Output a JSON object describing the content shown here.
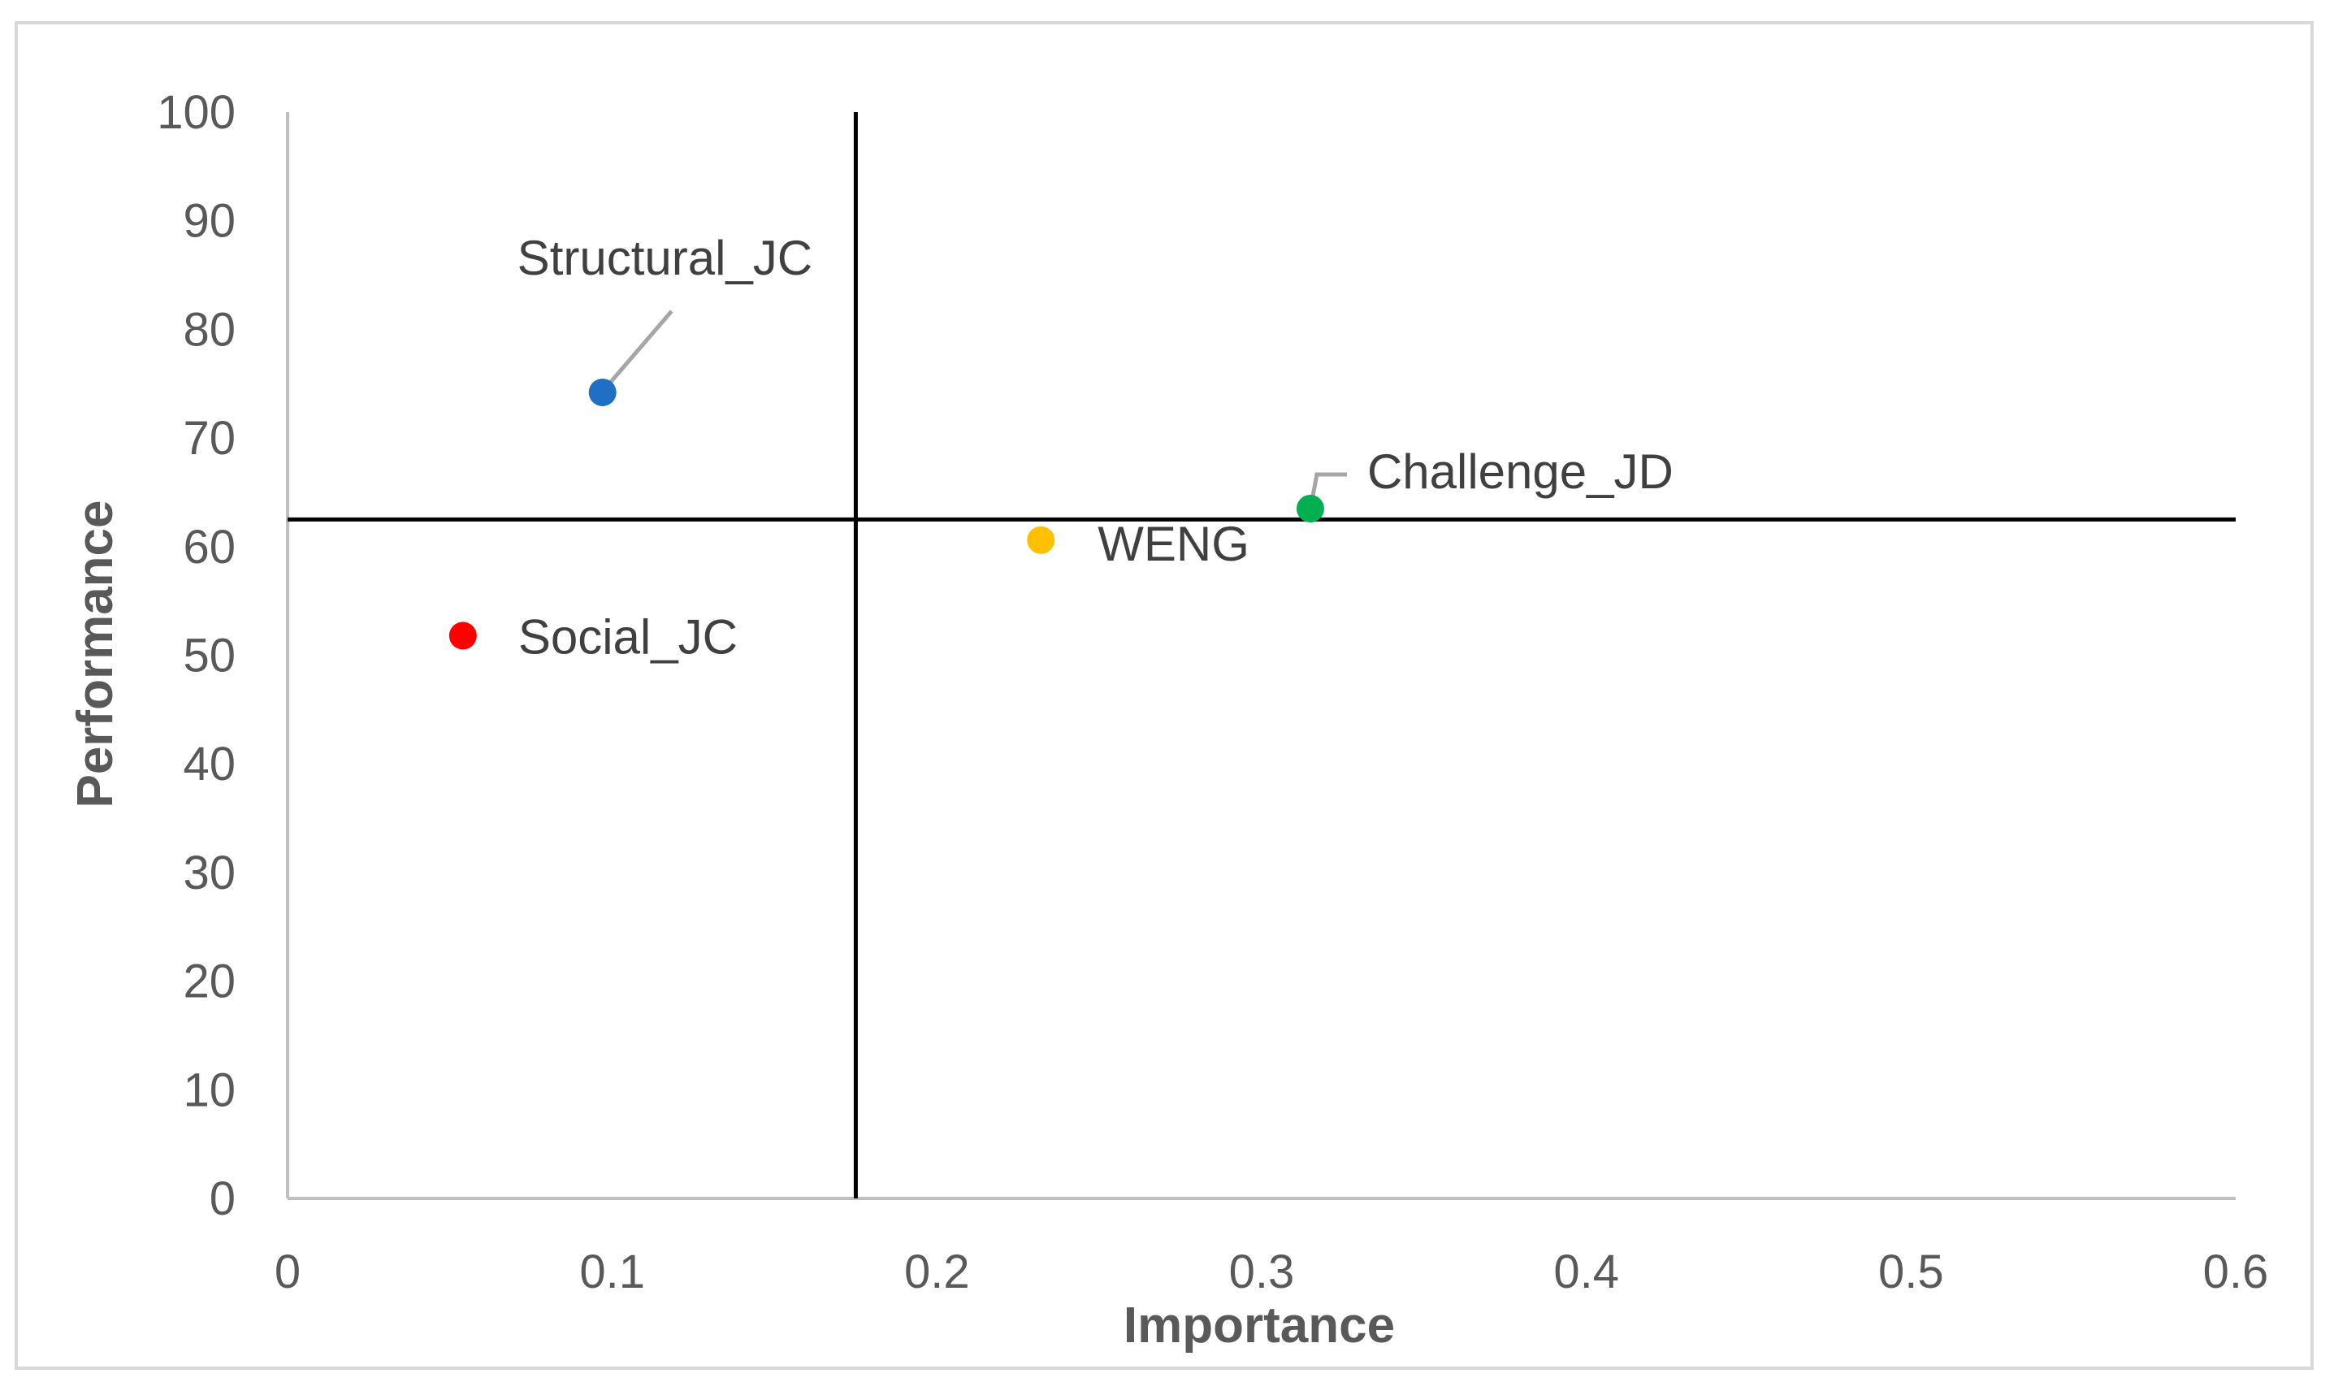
{
  "chart_data": {
    "type": "scatter",
    "title": "",
    "xlabel": "Importance",
    "ylabel": "Performance",
    "xlim": [
      0,
      0.6
    ],
    "ylim": [
      0,
      100
    ],
    "xticks": [
      "0",
      "0.1",
      "0.2",
      "0.3",
      "0.4",
      "0.5",
      "0.6"
    ],
    "yticks": [
      "0",
      "10",
      "20",
      "30",
      "40",
      "50",
      "60",
      "70",
      "80",
      "90",
      "100"
    ],
    "reference_lines": {
      "importance_mean": 0.175,
      "performance_mean": 62.5
    },
    "points": [
      {
        "name": "Structural_JC",
        "x": 0.097,
        "y": 74.2,
        "color": "#1f6fc5"
      },
      {
        "name": "Social_JC",
        "x": 0.054,
        "y": 51.8,
        "color": "#ff0000"
      },
      {
        "name": "WENG",
        "x": 0.232,
        "y": 60.6,
        "color": "#ffc000"
      },
      {
        "name": "Challenge_JD",
        "x": 0.315,
        "y": 63.5,
        "color": "#00b050"
      }
    ]
  }
}
